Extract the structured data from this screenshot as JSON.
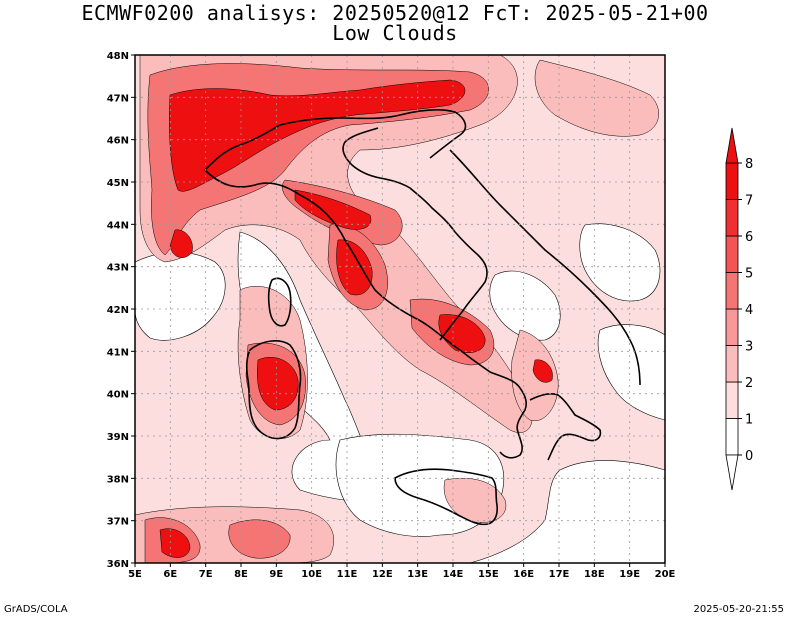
{
  "title_line1": "ECMWF0200 analisys: 20250520@12 FcT: 2025-05-21+00",
  "title_line2": "Low Clouds",
  "footer_left": "GrADS/COLA",
  "footer_right": "2025-05-20-21:55",
  "map": {
    "lon_range": [
      5,
      20
    ],
    "lat_range": [
      36,
      48
    ],
    "lon_ticks": [
      "5E",
      "6E",
      "7E",
      "8E",
      "9E",
      "10E",
      "11E",
      "12E",
      "13E",
      "14E",
      "15E",
      "16E",
      "17E",
      "18E",
      "19E",
      "20E"
    ],
    "lat_ticks": [
      "36N",
      "37N",
      "38N",
      "39N",
      "40N",
      "41N",
      "42N",
      "43N",
      "44N",
      "45N",
      "46N",
      "47N",
      "48N"
    ],
    "grid": true
  },
  "colorbar": {
    "labels": [
      "0",
      "1",
      "2",
      "3",
      "4",
      "5",
      "6",
      "7",
      "8"
    ],
    "colors": [
      "#ffffff",
      "#fddede",
      "#fbbcbc",
      "#f89898",
      "#f57575",
      "#f35454",
      "#f03030",
      "#ee1010"
    ]
  },
  "colors": {
    "land_outline": "#000000",
    "grid": "#9a9a9a"
  }
}
